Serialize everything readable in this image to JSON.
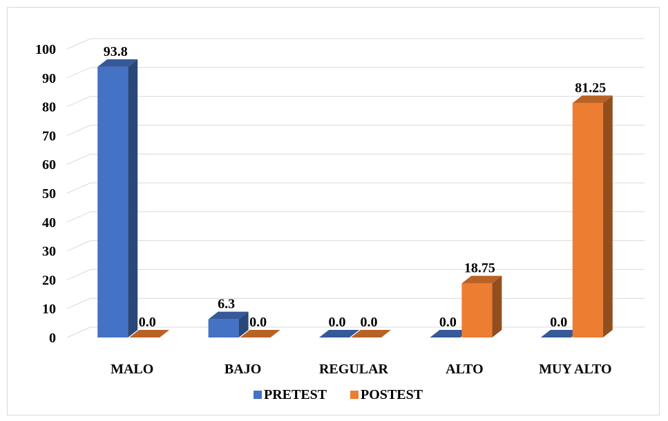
{
  "chart_data": {
    "type": "bar",
    "style": "3d-clustered-column",
    "categories": [
      "MALO",
      "BAJO",
      "REGULAR",
      "ALTO",
      "MUY ALTO"
    ],
    "series": [
      {
        "name": "PRETEST",
        "values": [
          93.8,
          6.3,
          0.0,
          0.0,
          0.0
        ],
        "labels": [
          "93.8",
          "6.3",
          "0.0",
          "0.0",
          "0.0"
        ],
        "color": "#4472C4"
      },
      {
        "name": "POSTEST",
        "values": [
          0.0,
          0.0,
          0.0,
          18.75,
          81.25
        ],
        "labels": [
          "0.0",
          "0.0",
          "0.0",
          "18.75",
          "81.25"
        ],
        "color": "#ED7D31"
      }
    ],
    "yticks": [
      "0",
      "10",
      "20",
      "30",
      "40",
      "50",
      "60",
      "70",
      "80",
      "90",
      "100"
    ],
    "ylim": [
      0,
      100
    ],
    "grid": true,
    "legend_position": "bottom"
  }
}
